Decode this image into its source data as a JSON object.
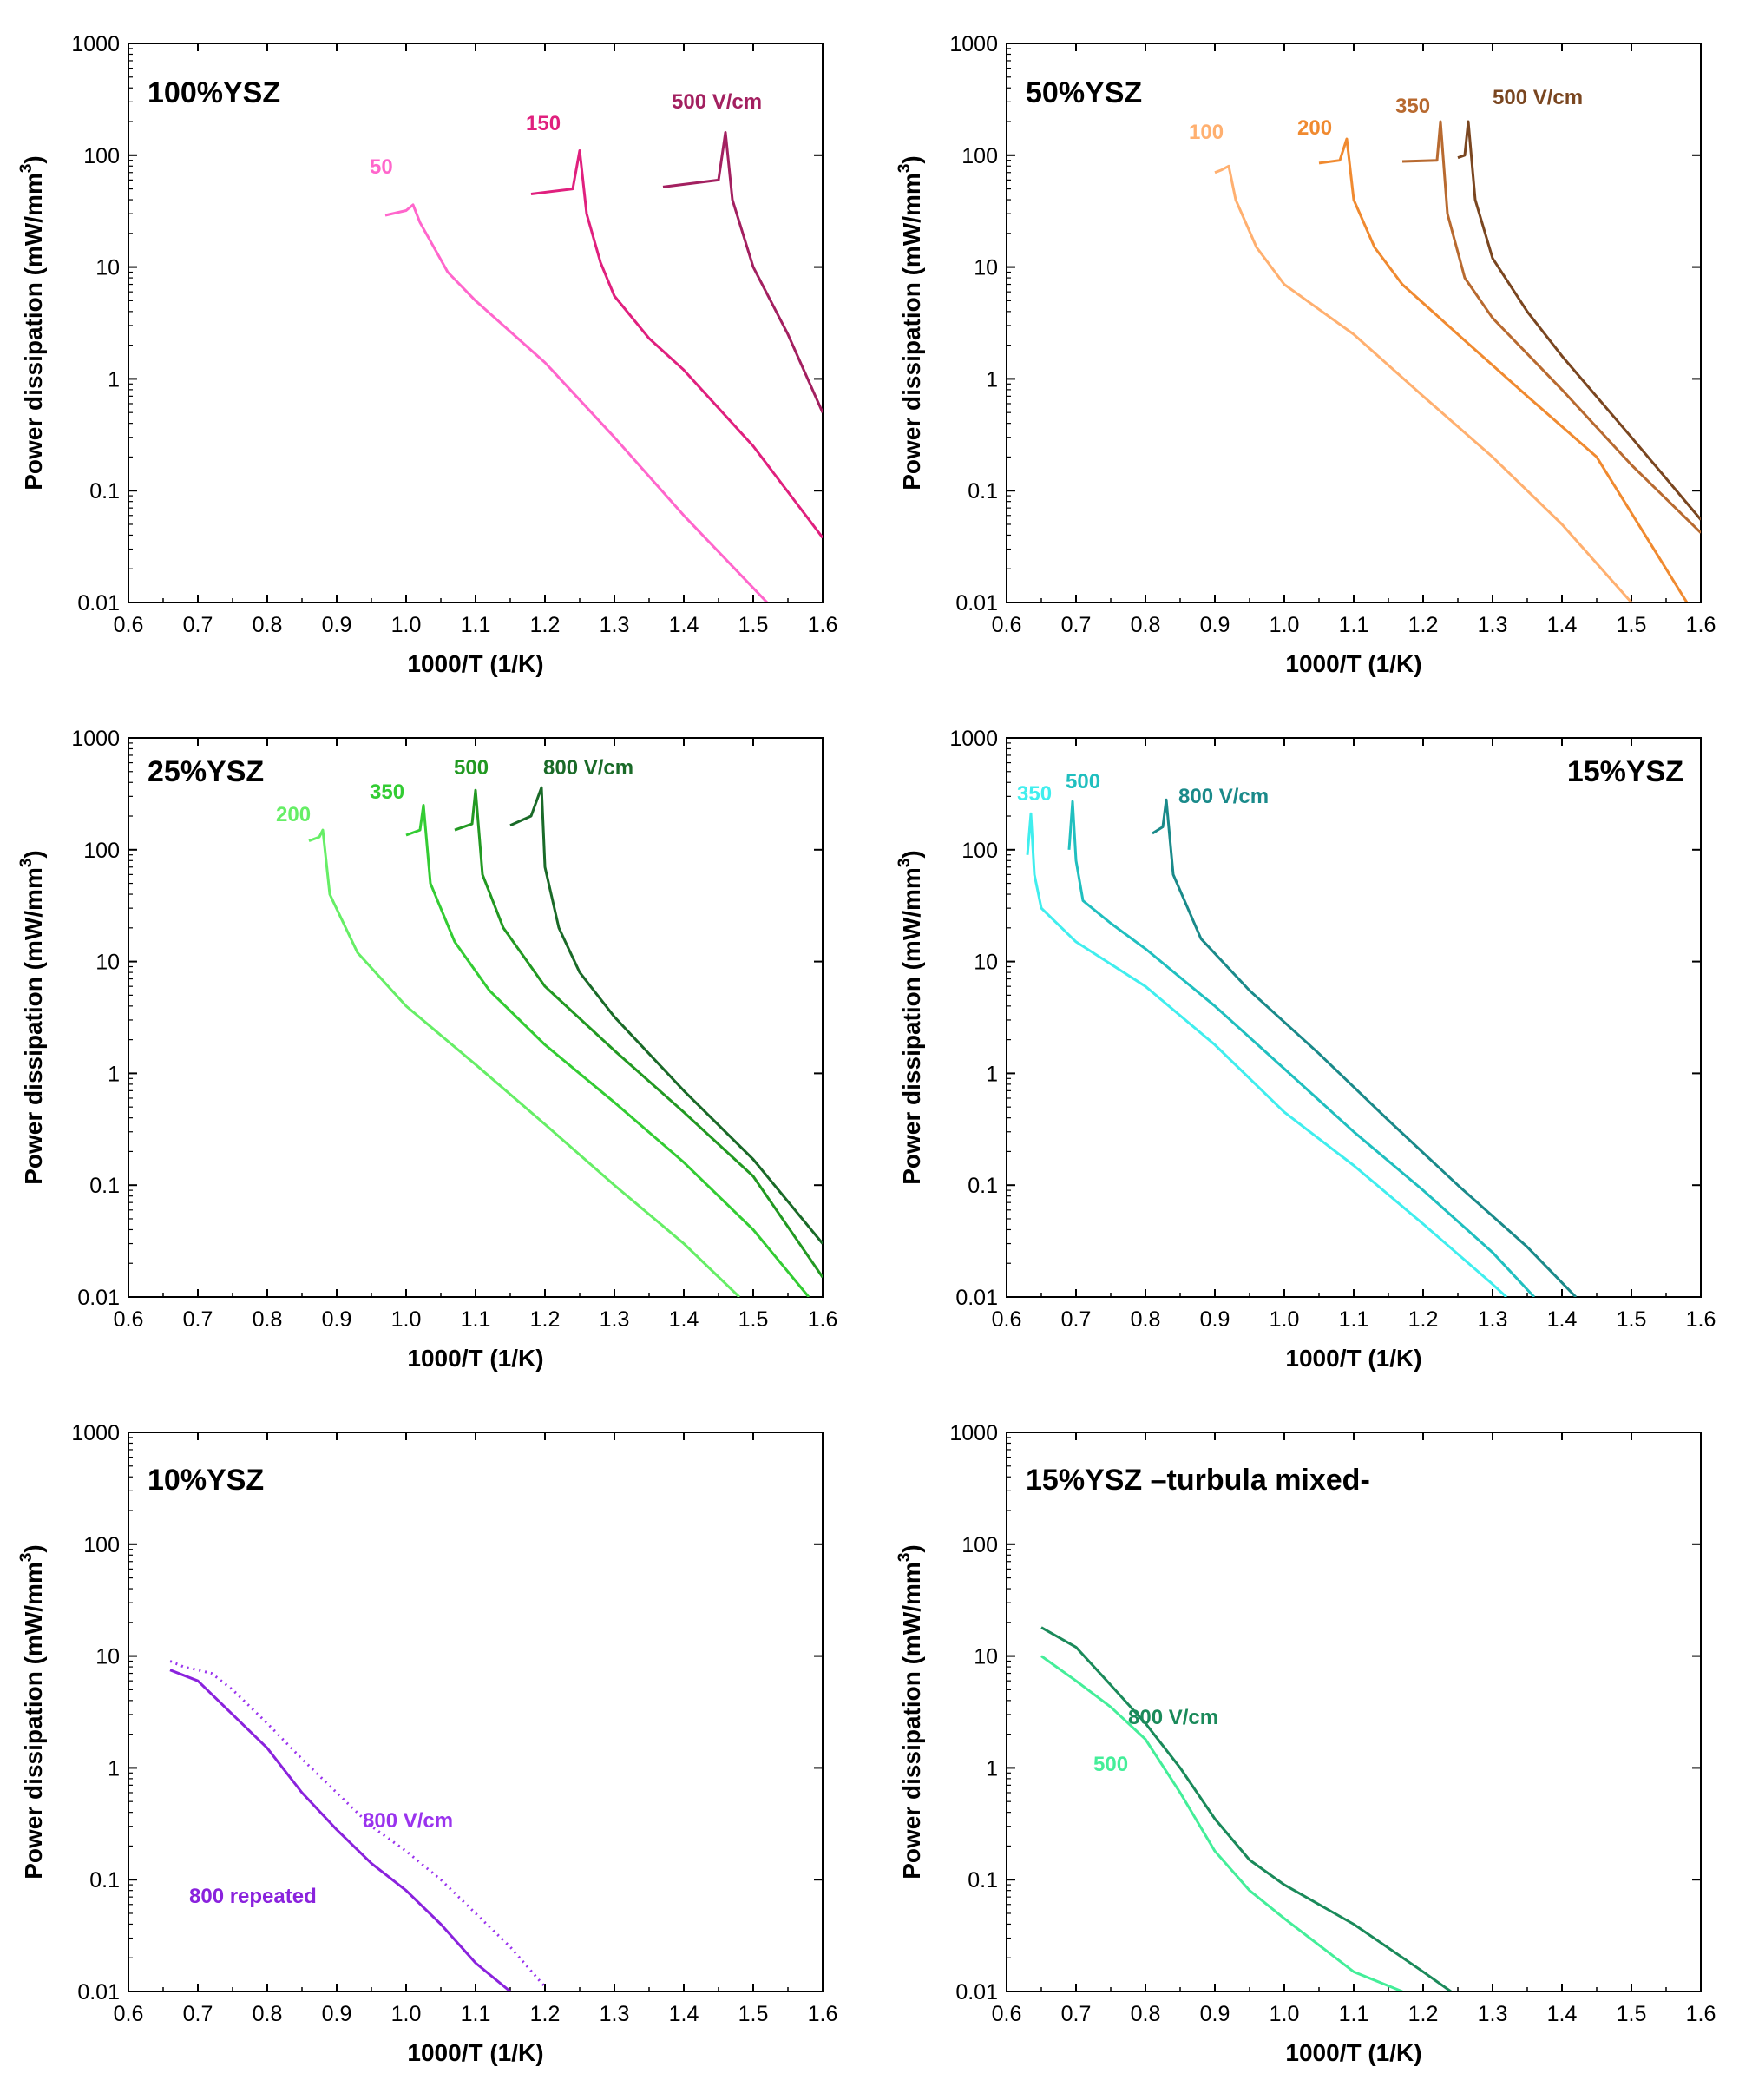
{
  "chart_data": [
    {
      "type": "line",
      "title": "100%YSZ",
      "xlabel": "1000/T (1/K)",
      "ylabel": "Power dissipation (mW/mm3)",
      "xlim": [
        0.6,
        1.6
      ],
      "ylim": [
        0.01,
        1000
      ],
      "yscale": "log",
      "xticks": [
        "0.6",
        "0.7",
        "0.8",
        "0.9",
        "1.0",
        "1.1",
        "1.2",
        "1.3",
        "1.4",
        "1.5",
        "1.6"
      ],
      "yticks": [
        "0.01",
        "0.1",
        "1",
        "10",
        "100",
        "1000"
      ],
      "series": [
        {
          "name": "50",
          "color": "#ff66cc",
          "x": [
            0.97,
            1.0,
            1.01,
            1.02,
            1.06,
            1.1,
            1.2,
            1.3,
            1.4,
            1.52
          ],
          "y": [
            29,
            32,
            36,
            25,
            9,
            5,
            1.4,
            0.3,
            0.06,
            0.01
          ]
        },
        {
          "name": "150",
          "color": "#e0207e",
          "x": [
            1.18,
            1.24,
            1.25,
            1.26,
            1.28,
            1.3,
            1.35,
            1.4,
            1.5,
            1.6
          ],
          "y": [
            45,
            50,
            110,
            30,
            11,
            5.5,
            2.3,
            1.2,
            0.25,
            0.038
          ]
        },
        {
          "name": "500 V/cm",
          "color": "#a32060",
          "x": [
            1.37,
            1.45,
            1.46,
            1.47,
            1.5,
            1.55,
            1.6
          ],
          "y": [
            52,
            60,
            160,
            40,
            10,
            2.5,
            0.5
          ]
        }
      ],
      "annotations": [
        "50",
        "150",
        "500 V/cm"
      ]
    },
    {
      "type": "line",
      "title": "50%YSZ",
      "xlabel": "1000/T (1/K)",
      "ylabel": "Power dissipation (mW/mm3)",
      "xlim": [
        0.6,
        1.6
      ],
      "ylim": [
        0.01,
        1000
      ],
      "yscale": "log",
      "xticks": [
        "0.6",
        "0.7",
        "0.8",
        "0.9",
        "1.0",
        "1.1",
        "1.2",
        "1.3",
        "1.4",
        "1.5",
        "1.6"
      ],
      "yticks": [
        "0.01",
        "0.1",
        "1",
        "10",
        "100",
        "1000"
      ],
      "series": [
        {
          "name": "100",
          "color": "#ffb070",
          "x": [
            0.9,
            0.91,
            0.92,
            0.93,
            0.96,
            1.0,
            1.1,
            1.2,
            1.3,
            1.4,
            1.5
          ],
          "y": [
            70,
            74,
            80,
            40,
            15,
            7,
            2.5,
            0.7,
            0.2,
            0.05,
            0.01
          ]
        },
        {
          "name": "200",
          "color": "#f08a30",
          "x": [
            1.05,
            1.08,
            1.09,
            1.1,
            1.13,
            1.17,
            1.25,
            1.35,
            1.45,
            1.58
          ],
          "y": [
            85,
            90,
            140,
            40,
            15,
            7,
            2.5,
            0.7,
            0.2,
            0.01
          ]
        },
        {
          "name": "350",
          "color": "#b86a30",
          "x": [
            1.17,
            1.22,
            1.225,
            1.235,
            1.26,
            1.3,
            1.4,
            1.5,
            1.6
          ],
          "y": [
            88,
            90,
            200,
            30,
            8,
            3.5,
            0.8,
            0.17,
            0.042
          ]
        },
        {
          "name": "500 V/cm",
          "color": "#7a4620",
          "x": [
            1.25,
            1.26,
            1.265,
            1.275,
            1.3,
            1.35,
            1.4,
            1.5,
            1.6
          ],
          "y": [
            95,
            100,
            200,
            40,
            12,
            4,
            1.6,
            0.3,
            0.055
          ]
        }
      ],
      "annotations": [
        "100",
        "200",
        "350",
        "500 V/cm"
      ]
    },
    {
      "type": "line",
      "title": "25%YSZ",
      "xlabel": "1000/T (1/K)",
      "ylabel": "Power dissipation (mW/mm3)",
      "xlim": [
        0.6,
        1.6
      ],
      "ylim": [
        0.01,
        1000
      ],
      "yscale": "log",
      "xticks": [
        "0.6",
        "0.7",
        "0.8",
        "0.9",
        "1.0",
        "1.1",
        "1.2",
        "1.3",
        "1.4",
        "1.5",
        "1.6"
      ],
      "yticks": [
        "0.01",
        "0.1",
        "1",
        "10",
        "100",
        "1000"
      ],
      "series": [
        {
          "name": "200",
          "color": "#66ee66",
          "x": [
            0.86,
            0.875,
            0.88,
            0.89,
            0.93,
            1.0,
            1.1,
            1.2,
            1.3,
            1.4,
            1.48
          ],
          "y": [
            120,
            130,
            150,
            40,
            12,
            4,
            1.2,
            0.35,
            0.1,
            0.03,
            0.01
          ]
        },
        {
          "name": "350",
          "color": "#33cc33",
          "x": [
            1.0,
            1.02,
            1.025,
            1.035,
            1.07,
            1.12,
            1.2,
            1.3,
            1.4,
            1.5,
            1.58
          ],
          "y": [
            135,
            150,
            250,
            50,
            15,
            5.5,
            1.8,
            0.55,
            0.16,
            0.04,
            0.01
          ]
        },
        {
          "name": "500",
          "color": "#229922",
          "x": [
            1.07,
            1.095,
            1.1,
            1.11,
            1.14,
            1.2,
            1.3,
            1.4,
            1.5,
            1.6
          ],
          "y": [
            150,
            170,
            340,
            60,
            20,
            6,
            1.6,
            0.45,
            0.12,
            0.015
          ]
        },
        {
          "name": "800 V/cm",
          "color": "#1a6a28",
          "x": [
            1.15,
            1.18,
            1.195,
            1.2,
            1.22,
            1.25,
            1.3,
            1.4,
            1.5,
            1.6
          ],
          "y": [
            165,
            200,
            360,
            70,
            20,
            8,
            3.2,
            0.7,
            0.17,
            0.03
          ]
        }
      ],
      "annotations": [
        "200",
        "350",
        "500",
        "800 V/cm"
      ]
    },
    {
      "type": "line",
      "title": "15%YSZ",
      "xlabel": "1000/T (1/K)",
      "ylabel": "Power dissipation (mW/mm3)",
      "xlim": [
        0.6,
        1.6
      ],
      "ylim": [
        0.01,
        1000
      ],
      "yscale": "log",
      "xticks": [
        "0.6",
        "0.7",
        "0.8",
        "0.9",
        "1.0",
        "1.1",
        "1.2",
        "1.3",
        "1.4",
        "1.5",
        "1.6"
      ],
      "yticks": [
        "0.01",
        "0.1",
        "1",
        "10",
        "100",
        "1000"
      ],
      "series": [
        {
          "name": "350",
          "color": "#40eeee",
          "x": [
            0.63,
            0.635,
            0.64,
            0.65,
            0.7,
            0.8,
            0.9,
            1.0,
            1.1,
            1.2,
            1.3,
            1.32
          ],
          "y": [
            90,
            210,
            60,
            30,
            15,
            6,
            1.8,
            0.45,
            0.15,
            0.045,
            0.013,
            0.01
          ]
        },
        {
          "name": "500",
          "color": "#20bfbf",
          "x": [
            0.69,
            0.695,
            0.7,
            0.71,
            0.75,
            0.8,
            0.9,
            1.0,
            1.1,
            1.2,
            1.3,
            1.36
          ],
          "y": [
            100,
            270,
            80,
            35,
            22,
            13,
            4,
            1.1,
            0.3,
            0.09,
            0.025,
            0.01
          ]
        },
        {
          "name": "800 V/cm",
          "color": "#1a8a8a",
          "x": [
            0.81,
            0.825,
            0.83,
            0.84,
            0.88,
            0.95,
            1.05,
            1.15,
            1.25,
            1.35,
            1.42
          ],
          "y": [
            140,
            160,
            280,
            60,
            16,
            5.5,
            1.5,
            0.38,
            0.1,
            0.028,
            0.01
          ]
        }
      ],
      "annotations": [
        "350",
        "500",
        "800 V/cm",
        "15%YSZ"
      ]
    },
    {
      "type": "line",
      "title": "10%YSZ",
      "xlabel": "1000/T (1/K)",
      "ylabel": "Power dissipation (mW/mm3)",
      "xlim": [
        0.6,
        1.6
      ],
      "ylim": [
        0.01,
        1000
      ],
      "yscale": "log",
      "xticks": [
        "0.6",
        "0.7",
        "0.8",
        "0.9",
        "1.0",
        "1.1",
        "1.2",
        "1.3",
        "1.4",
        "1.5",
        "1.6"
      ],
      "yticks": [
        "0.01",
        "0.1",
        "1",
        "10",
        "100",
        "1000"
      ],
      "series": [
        {
          "name": "800 V/cm",
          "color": "#9a33ee",
          "dotted": true,
          "x": [
            0.66,
            0.68,
            0.7,
            0.72,
            0.75,
            0.8,
            0.85,
            0.9,
            0.95,
            1.0,
            1.05,
            1.1,
            1.15,
            1.2
          ],
          "y": [
            9,
            8,
            7.5,
            7,
            5,
            2.5,
            1.2,
            0.6,
            0.3,
            0.18,
            0.1,
            0.05,
            0.025,
            0.011
          ]
        },
        {
          "name": "800 repeated",
          "color": "#8a22dd",
          "x": [
            0.66,
            0.7,
            0.75,
            0.8,
            0.85,
            0.9,
            0.95,
            1.0,
            1.05,
            1.1,
            1.15
          ],
          "y": [
            7.5,
            6,
            3,
            1.5,
            0.6,
            0.28,
            0.14,
            0.08,
            0.04,
            0.018,
            0.01
          ]
        }
      ],
      "annotations": [
        "800 V/cm",
        "800 repeated"
      ]
    },
    {
      "type": "line",
      "title": "15%YSZ –turbula mixed-",
      "xlabel": "1000/T (1/K)",
      "ylabel": "Power dissipation (mW/mm3)",
      "xlim": [
        0.6,
        1.6
      ],
      "ylim": [
        0.01,
        1000
      ],
      "yscale": "log",
      "xticks": [
        "0.6",
        "0.7",
        "0.8",
        "0.9",
        "1.0",
        "1.1",
        "1.2",
        "1.3",
        "1.4",
        "1.5",
        "1.6"
      ],
      "yticks": [
        "0.01",
        "0.1",
        "1",
        "10",
        "100",
        "1000"
      ],
      "series": [
        {
          "name": "800 V/cm",
          "color": "#1a8a5a",
          "x": [
            0.65,
            0.7,
            0.75,
            0.8,
            0.85,
            0.9,
            0.95,
            1.0,
            1.1,
            1.2,
            1.24
          ],
          "y": [
            18,
            12,
            5.5,
            2.5,
            1,
            0.35,
            0.15,
            0.09,
            0.04,
            0.015,
            0.01
          ]
        },
        {
          "name": "500",
          "color": "#44ee99",
          "x": [
            0.65,
            0.7,
            0.75,
            0.8,
            0.85,
            0.9,
            0.95,
            1.0,
            1.1,
            1.17
          ],
          "y": [
            10,
            6,
            3.5,
            1.8,
            0.6,
            0.18,
            0.08,
            0.045,
            0.015,
            0.01
          ]
        }
      ],
      "annotations": [
        "800 V/cm",
        "500"
      ]
    }
  ]
}
